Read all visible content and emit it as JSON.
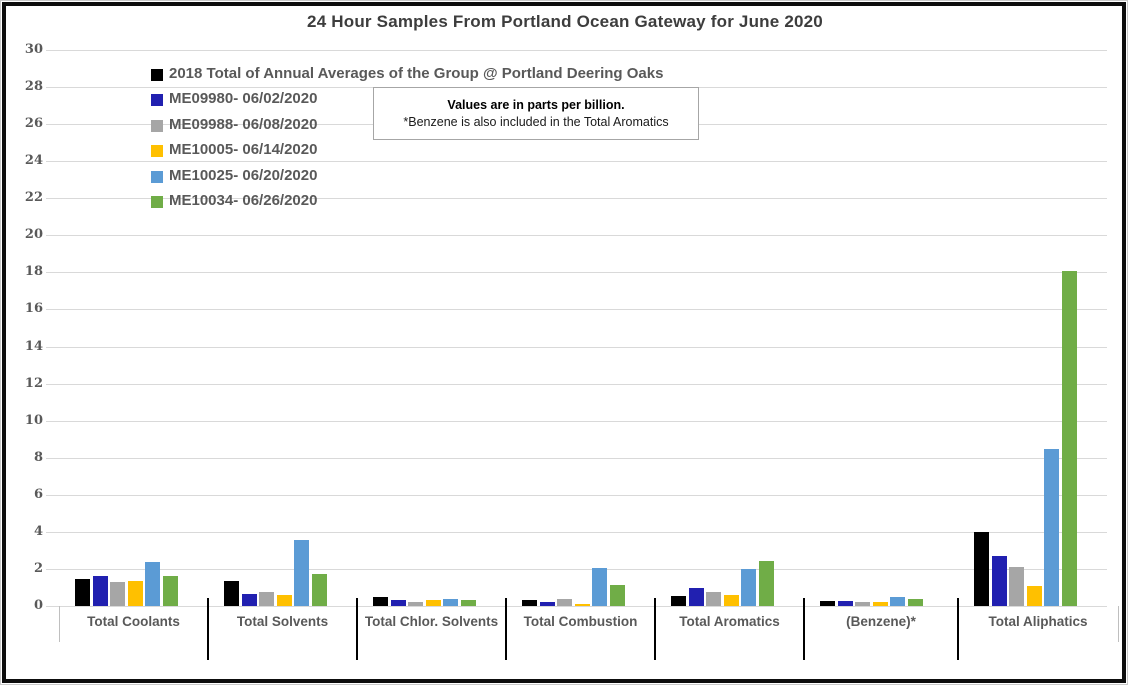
{
  "title": "24 Hour Samples From Portland Ocean Gateway for June 2020",
  "annotation": {
    "line1": "Values are in parts per billion.",
    "line2": "*Benzene is also included in the Total Aromatics"
  },
  "chart_data": {
    "type": "bar",
    "title": "24 Hour Samples From Portland Ocean Gateway for June 2020",
    "unit_note": "Values are in parts per billion",
    "categories": [
      "Total Coolants",
      "Total Solvents",
      "Total Chlor. Solvents",
      "Total Combustion",
      "Total Aromatics",
      "(Benzene)*",
      "Total Aliphatics"
    ],
    "series": [
      {
        "name": "2018 Total of Annual Averages of the Group @ Portland Deering Oaks",
        "color": "#000000",
        "values": [
          1.45,
          1.35,
          0.5,
          0.3,
          0.55,
          0.25,
          4.0
        ]
      },
      {
        "name": "ME09980- 06/02/2020",
        "color": "#2120b0",
        "values": [
          1.6,
          0.65,
          0.3,
          0.2,
          0.95,
          0.25,
          2.7
        ]
      },
      {
        "name": "ME09988- 06/08/2020",
        "color": "#a6a6a6",
        "values": [
          1.3,
          0.75,
          0.2,
          0.4,
          0.75,
          0.2,
          2.1
        ]
      },
      {
        "name": "ME10005- 06/14/2020",
        "color": "#ffc000",
        "values": [
          1.35,
          0.6,
          0.3,
          0.1,
          0.6,
          0.2,
          1.1
        ]
      },
      {
        "name": "ME10025- 06/20/2020",
        "color": "#5b9bd5",
        "values": [
          2.4,
          3.55,
          0.4,
          2.05,
          2.0,
          0.5,
          8.45
        ]
      },
      {
        "name": "ME10034- 06/26/2020",
        "color": "#70ad47",
        "values": [
          1.6,
          1.75,
          0.3,
          1.15,
          2.45,
          0.4,
          18.1
        ]
      }
    ],
    "y_axis": {
      "min": 0,
      "max": 30,
      "step": 2
    },
    "ylabel": "",
    "xlabel": "",
    "grid": true,
    "legend_position": "top-left",
    "grid_color": "#d9d9d9"
  }
}
